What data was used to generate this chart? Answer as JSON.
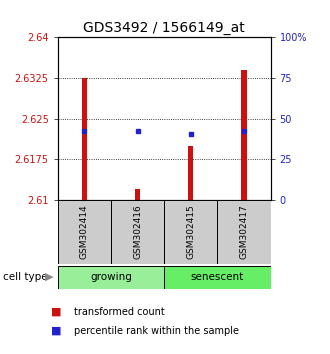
{
  "title": "GDS3492 / 1566149_at",
  "samples": [
    "GSM302414",
    "GSM302416",
    "GSM302415",
    "GSM302417"
  ],
  "bar_bottoms": [
    2.61,
    2.61,
    2.61,
    2.61
  ],
  "bar_tops": [
    2.6325,
    2.612,
    2.62,
    2.634
  ],
  "blue_y": [
    2.6228,
    2.6228,
    2.6222,
    2.6228
  ],
  "ylim": [
    2.61,
    2.64
  ],
  "yticks_left": [
    2.61,
    2.6175,
    2.625,
    2.6325,
    2.64
  ],
  "yticks_right": [
    0,
    25,
    50,
    75,
    100
  ],
  "groups": [
    {
      "label": "growing",
      "color": "#99ee99"
    },
    {
      "label": "senescent",
      "color": "#66ee66"
    }
  ],
  "bar_color": "#cc1111",
  "blue_color": "#2222cc",
  "label_bg_color": "#cccccc",
  "title_fontsize": 10,
  "tick_fontsize": 7,
  "group_fontsize": 7.5,
  "legend_fontsize": 7,
  "sample_fontsize": 6.5,
  "cell_type_fontsize": 7.5
}
